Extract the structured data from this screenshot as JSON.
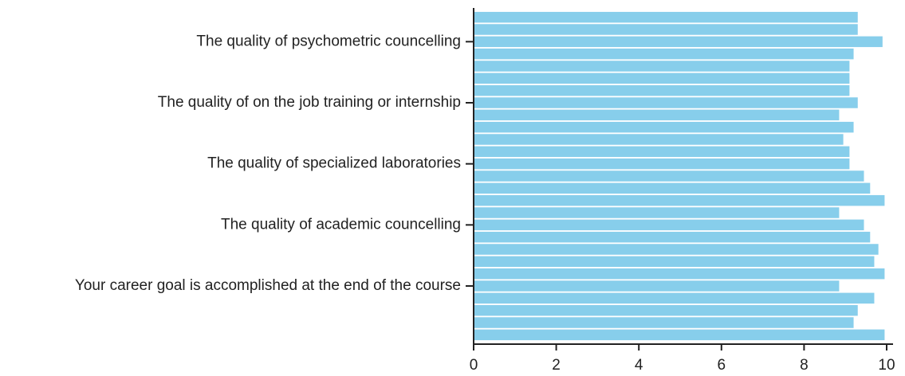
{
  "chart_data": {
    "type": "barh",
    "categories": [
      null,
      null,
      "The quality of psychometric councelling",
      null,
      null,
      null,
      null,
      "The quality of on the job training or internship",
      null,
      null,
      null,
      null,
      "The quality of specialized laboratories",
      null,
      null,
      null,
      null,
      "The quality of academic councelling",
      null,
      null,
      null,
      null,
      "Your career goal is accomplished at the end of the course",
      null,
      null,
      null,
      null
    ],
    "values": [
      9.3,
      9.3,
      9.9,
      9.2,
      9.1,
      9.1,
      9.1,
      9.3,
      8.85,
      9.2,
      8.95,
      9.1,
      9.1,
      9.45,
      9.6,
      9.95,
      8.85,
      9.45,
      9.6,
      9.8,
      9.7,
      9.95,
      8.85,
      9.7,
      9.3,
      9.2,
      9.95
    ],
    "color": "#87ceeb",
    "xlim": [
      0,
      10
    ],
    "xticks": [
      0,
      2,
      4,
      6,
      8,
      10
    ],
    "grid": false
  }
}
